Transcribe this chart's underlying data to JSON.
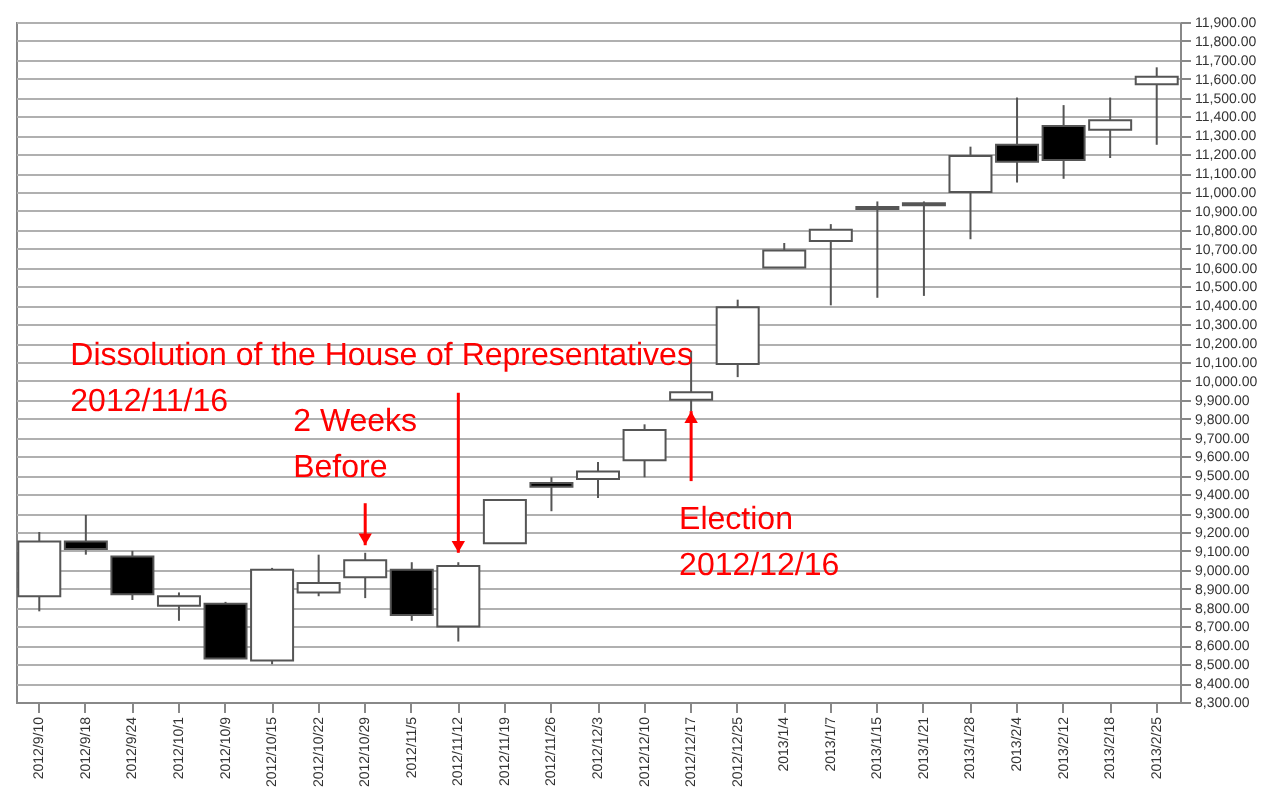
{
  "chart_data": {
    "type": "candlestick",
    "categories": [
      "2012/9/10",
      "2012/9/18",
      "2012/9/24",
      "2012/10/1",
      "2012/10/9",
      "2012/10/15",
      "2012/10/22",
      "2012/10/29",
      "2012/11/5",
      "2012/11/12",
      "2012/11/19",
      "2012/11/26",
      "2012/12/3",
      "2012/12/10",
      "2012/12/17",
      "2012/12/25",
      "2013/1/4",
      "2013/1/7",
      "2013/1/15",
      "2013/1/21",
      "2013/1/28",
      "2013/2/4",
      "2013/2/12",
      "2013/2/18",
      "2013/2/25"
    ],
    "ohlc": [
      [
        8860,
        9200,
        8780,
        9150
      ],
      [
        9150,
        9290,
        9080,
        9110
      ],
      [
        9070,
        9100,
        8840,
        8870
      ],
      [
        8810,
        8880,
        8730,
        8860
      ],
      [
        8820,
        8830,
        8530,
        8530
      ],
      [
        8520,
        9010,
        8500,
        9000
      ],
      [
        8880,
        9080,
        8860,
        8930
      ],
      [
        8960,
        9090,
        8850,
        9050
      ],
      [
        9000,
        9040,
        8730,
        8760
      ],
      [
        8700,
        9040,
        8620,
        9020
      ],
      [
        9140,
        9370,
        9140,
        9370
      ],
      [
        9460,
        9490,
        9310,
        9440
      ],
      [
        9480,
        9570,
        9380,
        9520
      ],
      [
        9580,
        9770,
        9490,
        9740
      ],
      [
        9900,
        10160,
        9840,
        9940
      ],
      [
        10090,
        10430,
        10020,
        10390
      ],
      [
        10600,
        10730,
        10600,
        10690
      ],
      [
        10740,
        10830,
        10400,
        10800
      ],
      [
        10910,
        10950,
        10440,
        10920
      ],
      [
        10940,
        10950,
        10450,
        10930
      ],
      [
        11000,
        11240,
        10750,
        11190
      ],
      [
        11250,
        11500,
        11050,
        11160
      ],
      [
        11350,
        11460,
        11070,
        11170
      ],
      [
        11330,
        11500,
        11180,
        11380
      ],
      [
        11570,
        11660,
        11250,
        11610
      ]
    ],
    "colors": [
      "#ffffff",
      "#000000",
      "#000000",
      "#ffffff",
      "#000000",
      "#ffffff",
      "#ffffff",
      "#ffffff",
      "#000000",
      "#ffffff",
      "#ffffff",
      "#000000",
      "#ffffff",
      "#ffffff",
      "#ffffff",
      "#ffffff",
      "#ffffff",
      "#ffffff",
      "#ffffff",
      "#000000",
      "#ffffff",
      "#000000",
      "#000000",
      "#ffffff",
      "#ffffff"
    ],
    "ylim": [
      8300,
      11900
    ],
    "yticks": [
      {
        "value": 8300,
        "label": "8,300.00"
      },
      {
        "value": 8400,
        "label": "8,400.00"
      },
      {
        "value": 8500,
        "label": "8,500.00"
      },
      {
        "value": 8600,
        "label": "8,600.00"
      },
      {
        "value": 8700,
        "label": "8,700.00"
      },
      {
        "value": 8800,
        "label": "8,800.00"
      },
      {
        "value": 8900,
        "label": "8,900.00"
      },
      {
        "value": 9000,
        "label": "9,000.00"
      },
      {
        "value": 9100,
        "label": "9,100.00"
      },
      {
        "value": 9200,
        "label": "9,200.00"
      },
      {
        "value": 9300,
        "label": "9,300.00"
      },
      {
        "value": 9400,
        "label": "9,400.00"
      },
      {
        "value": 9500,
        "label": "9,500.00"
      },
      {
        "value": 9600,
        "label": "9,600.00"
      },
      {
        "value": 9700,
        "label": "9,700.00"
      },
      {
        "value": 9800,
        "label": "9,800.00"
      },
      {
        "value": 9900,
        "label": "9,900.00"
      },
      {
        "value": 10000,
        "label": "10,000.00"
      },
      {
        "value": 10100,
        "label": "10,100.00"
      },
      {
        "value": 10200,
        "label": "10,200.00"
      },
      {
        "value": 10300,
        "label": "10,300.00"
      },
      {
        "value": 10400,
        "label": "10,400.00"
      },
      {
        "value": 10500,
        "label": "10,500.00"
      },
      {
        "value": 10600,
        "label": "10,600.00"
      },
      {
        "value": 10700,
        "label": "10,700.00"
      },
      {
        "value": 10800,
        "label": "10,800.00"
      },
      {
        "value": 10900,
        "label": "10,900.00"
      },
      {
        "value": 11000,
        "label": "11,000.00"
      },
      {
        "value": 11100,
        "label": "11,100.00"
      },
      {
        "value": 11200,
        "label": "11,200.00"
      },
      {
        "value": 11300,
        "label": "11,300.00"
      },
      {
        "value": 11400,
        "label": "11,400.00"
      },
      {
        "value": 11500,
        "label": "11,500.00"
      },
      {
        "value": 11600,
        "label": "11,600.00"
      },
      {
        "value": 11700,
        "label": "11,700.00"
      },
      {
        "value": 11800,
        "label": "11,800.00"
      },
      {
        "value": 11900,
        "label": "11,900.00"
      }
    ],
    "grid": "y",
    "annotations": [
      {
        "text": "Dissolution of the House of Representatives\n2012/11/16",
        "x": "2012/11/12",
        "y": 9090
      },
      {
        "text": "2 Weeks\nBefore",
        "x": "2012/10/29",
        "y": 9130
      },
      {
        "text": "Election\n2012/12/16",
        "x": "2012/12/17",
        "y": 9840
      }
    ]
  }
}
